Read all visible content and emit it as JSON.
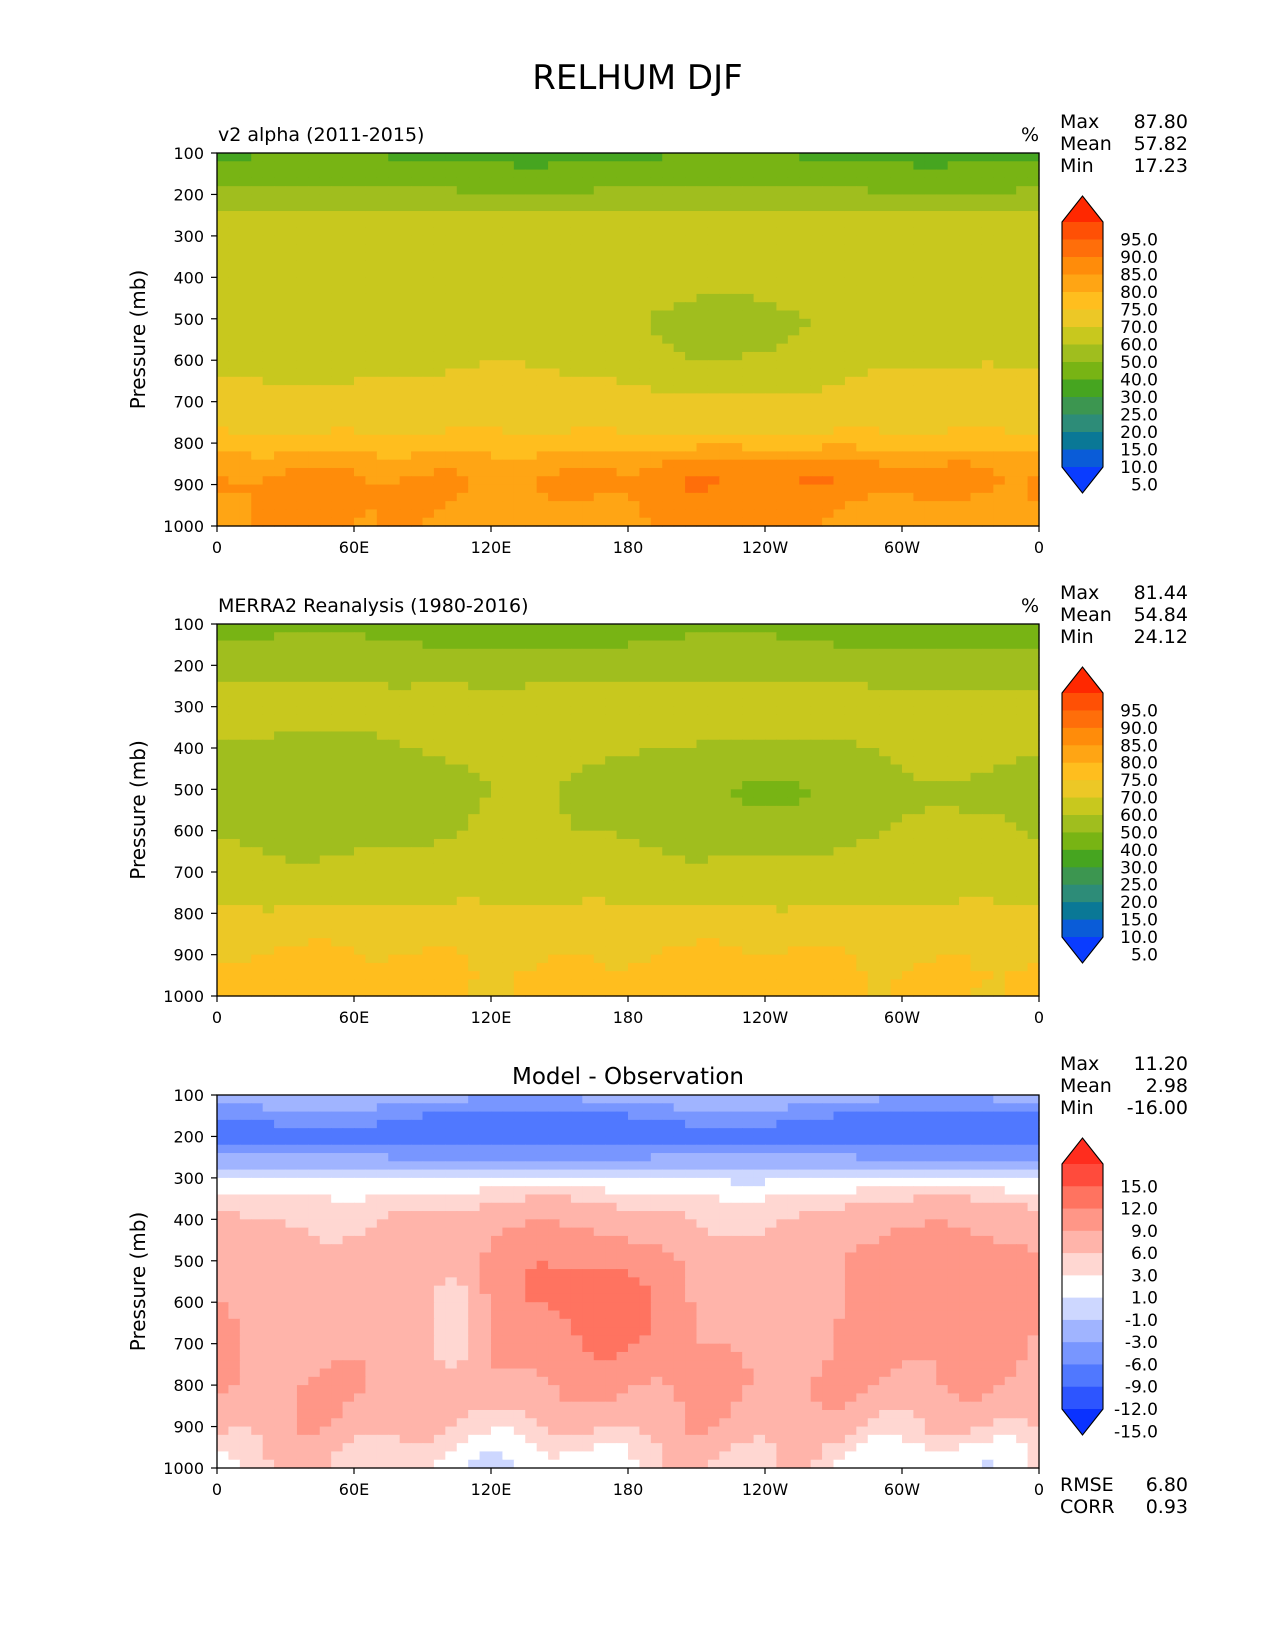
{
  "page": {
    "title": "RELHUM DJF"
  },
  "colors": {
    "ramp": [
      "#0a3cff",
      "#0a5cd8",
      "#0a7896",
      "#2d8c78",
      "#3c9650",
      "#46a520",
      "#78b414",
      "#a0be1e",
      "#c8c81e",
      "#ecc826",
      "#ffbe1e",
      "#ffa514",
      "#ff8c0a",
      "#ff6e0a",
      "#ff5005",
      "#ff2800"
    ],
    "diff": [
      "#0a32ff",
      "#2d55ff",
      "#5078ff",
      "#7896ff",
      "#a0b4ff",
      "#cdd7ff",
      "#ffffff",
      "#ffd7d2",
      "#ffb4aa",
      "#ff9687",
      "#ff7360",
      "#ff4b3c",
      "#ff2d1e"
    ]
  },
  "chart_data": [
    {
      "type": "heatmap",
      "title": "v2 alpha (2011-2015)",
      "units": "%",
      "ylabel": "Pressure (mb)",
      "xlabel": "",
      "xticks": [
        "0",
        "60E",
        "120E",
        "180",
        "120W",
        "60W",
        "0"
      ],
      "yticks": [
        "100",
        "200",
        "300",
        "400",
        "500",
        "600",
        "700",
        "800",
        "900",
        "1000"
      ],
      "ylim": [
        100,
        1000
      ],
      "xlim": [
        0,
        360
      ],
      "stats": [
        {
          "label": "Max",
          "value": "87.80"
        },
        {
          "label": "Mean",
          "value": "57.82"
        },
        {
          "label": "Min",
          "value": "17.23"
        }
      ],
      "colorbar": {
        "palette": "ramp",
        "levels": [
          5,
          10,
          15,
          20,
          25,
          30,
          40,
          50,
          60,
          70,
          75,
          80,
          85,
          90,
          95
        ],
        "labels": [
          "95.0",
          "90.0",
          "85.0",
          "80.0",
          "75.0",
          "70.0",
          "60.0",
          "50.0",
          "40.0",
          "30.0",
          "25.0",
          "20.0",
          "15.0",
          "10.0",
          "5.0"
        ]
      },
      "field_profile": [
        [
          100,
          28
        ],
        [
          150,
          34
        ],
        [
          200,
          42
        ],
        [
          250,
          52
        ],
        [
          300,
          58
        ],
        [
          400,
          57
        ],
        [
          500,
          55
        ],
        [
          600,
          58
        ],
        [
          700,
          64
        ],
        [
          750,
          68
        ],
        [
          800,
          72
        ],
        [
          850,
          78
        ],
        [
          900,
          81
        ],
        [
          950,
          80
        ],
        [
          1000,
          79
        ]
      ],
      "dry_region": {
        "center_lon": 222,
        "center_p": 540,
        "lon_width": 60,
        "p_width": 130,
        "amplitude": -7
      },
      "moist_region": {
        "center_lon": 255,
        "center_p": 870,
        "lon_width": 80,
        "p_width": 60,
        "amplitude": 4
      }
    },
    {
      "type": "heatmap",
      "title": "MERRA2 Reanalysis (1980-2016)",
      "units": "%",
      "ylabel": "Pressure (mb)",
      "xlabel": "",
      "xticks": [
        "0",
        "60E",
        "120E",
        "180",
        "120W",
        "60W",
        "0"
      ],
      "yticks": [
        "100",
        "200",
        "300",
        "400",
        "500",
        "600",
        "700",
        "800",
        "900",
        "1000"
      ],
      "ylim": [
        100,
        1000
      ],
      "xlim": [
        0,
        360
      ],
      "stats": [
        {
          "label": "Max",
          "value": "81.44"
        },
        {
          "label": "Mean",
          "value": "54.84"
        },
        {
          "label": "Min",
          "value": "24.12"
        }
      ],
      "colorbar": {
        "palette": "ramp",
        "levels": [
          5,
          10,
          15,
          20,
          25,
          30,
          40,
          50,
          60,
          70,
          75,
          80,
          85,
          90,
          95
        ],
        "labels": [
          "95.0",
          "90.0",
          "85.0",
          "80.0",
          "75.0",
          "70.0",
          "60.0",
          "50.0",
          "40.0",
          "30.0",
          "25.0",
          "20.0",
          "15.0",
          "10.0",
          "5.0"
        ]
      },
      "field_profile": [
        [
          100,
          37
        ],
        [
          150,
          40
        ],
        [
          200,
          44
        ],
        [
          250,
          50
        ],
        [
          300,
          53
        ],
        [
          400,
          50
        ],
        [
          500,
          48
        ],
        [
          600,
          49
        ],
        [
          700,
          53
        ],
        [
          750,
          57
        ],
        [
          800,
          62
        ],
        [
          850,
          67
        ],
        [
          900,
          70
        ],
        [
          950,
          72
        ],
        [
          1000,
          72
        ]
      ],
      "dry_region": {
        "center_lon": 250,
        "center_p": 510,
        "lon_width": 40,
        "p_width": 90,
        "amplitude": -8
      },
      "moist_region": {
        "center_lon": 200,
        "center_p": 320,
        "lon_width": 50,
        "p_width": 60,
        "amplitude": 6
      }
    },
    {
      "type": "heatmap",
      "title": "Model - Observation",
      "units": "",
      "ylabel": "Pressure (mb)",
      "xlabel": "",
      "xticks": [
        "0",
        "60E",
        "120E",
        "180",
        "120W",
        "60W",
        "0"
      ],
      "yticks": [
        "100",
        "200",
        "300",
        "400",
        "500",
        "600",
        "700",
        "800",
        "900",
        "1000"
      ],
      "ylim": [
        100,
        1000
      ],
      "xlim": [
        0,
        360
      ],
      "stats": [
        {
          "label": "Max",
          "value": "11.20"
        },
        {
          "label": "Mean",
          "value": "2.98"
        },
        {
          "label": "Min",
          "value": "-16.00"
        }
      ],
      "extra_stats": [
        {
          "label": "RMSE",
          "value": "6.80"
        },
        {
          "label": "CORR",
          "value": "0.93"
        }
      ],
      "colorbar": {
        "palette": "diff",
        "levels": [
          -15,
          -12,
          -9,
          -6,
          -3,
          -1,
          1,
          3,
          6,
          9,
          12,
          15
        ],
        "labels": [
          "15.0",
          "12.0",
          "9.0",
          "6.0",
          "3.0",
          "1.0",
          "-1.0",
          "-3.0",
          "-6.0",
          "-9.0",
          "-12.0",
          "-15.0"
        ]
      },
      "field_profile": [
        [
          100,
          -4
        ],
        [
          150,
          -9
        ],
        [
          200,
          -11
        ],
        [
          250,
          -6
        ],
        [
          300,
          -1
        ],
        [
          350,
          2
        ],
        [
          400,
          4
        ],
        [
          500,
          6
        ],
        [
          600,
          6
        ],
        [
          700,
          6
        ],
        [
          800,
          6
        ],
        [
          900,
          4
        ],
        [
          950,
          2
        ],
        [
          1000,
          1
        ]
      ],
      "dry_region": {
        "center_lon": 105,
        "center_p": 650,
        "lon_width": 14,
        "p_width": 220,
        "amplitude": -5
      },
      "moist_region": {
        "center_lon": 180,
        "center_p": 620,
        "lon_width": 35,
        "p_width": 150,
        "amplitude": 4
      }
    }
  ]
}
